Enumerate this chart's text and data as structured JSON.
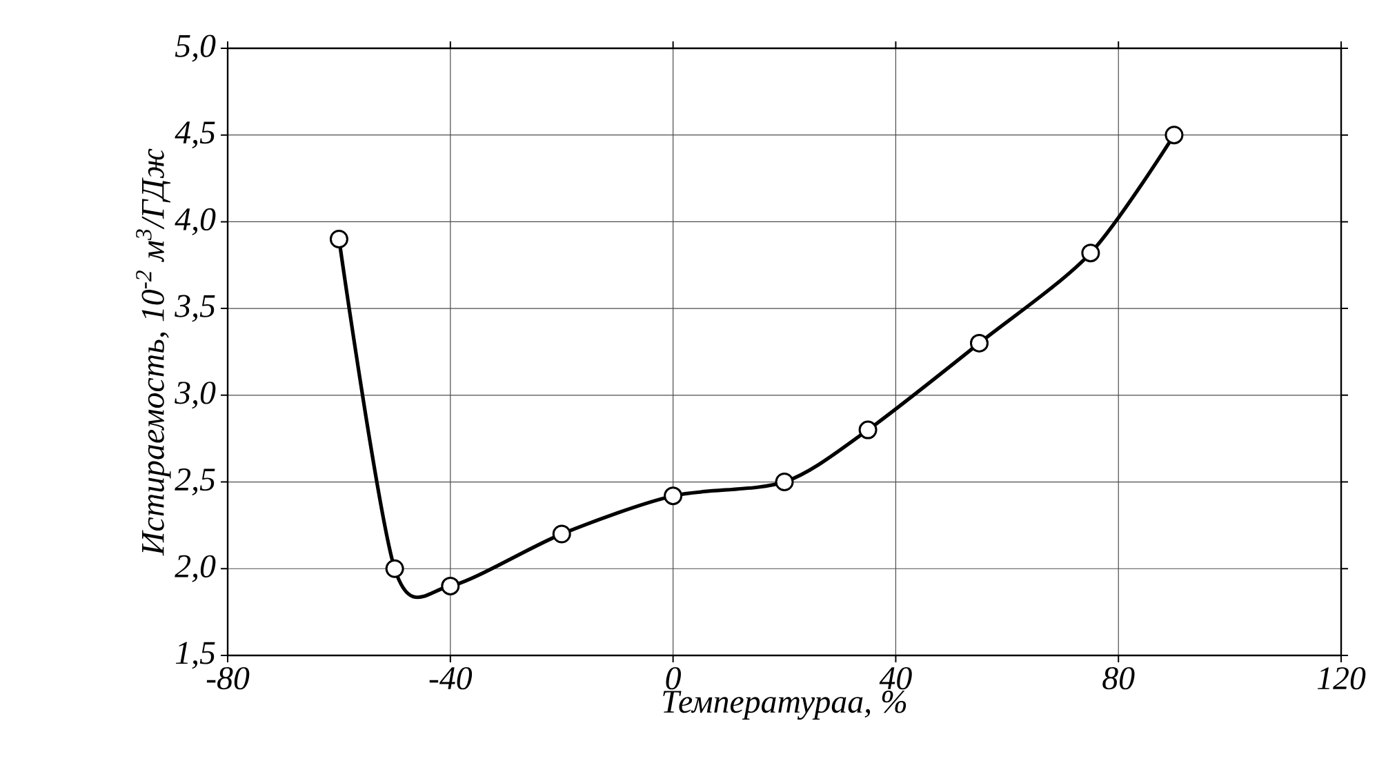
{
  "chart_data": {
    "type": "line",
    "xlabel": "Температураа, %",
    "ylabel": "Истираемость, 10$^{-2}$ м$^{3}$/ГДж",
    "x": [
      -60,
      -50,
      -40,
      -20,
      0,
      20,
      35,
      55,
      75,
      90
    ],
    "series": [
      {
        "color": "#000000",
        "values": [
          3.9,
          2.0,
          1.9,
          2.2,
          2.42,
          2.5,
          2.8,
          3.3,
          3.82,
          4.5
        ]
      }
    ],
    "xlim": [
      -80,
      120
    ],
    "xticks": [
      -80,
      -40,
      0,
      40,
      80,
      120
    ],
    "ylim": [
      1.5,
      5.0
    ],
    "yticks": [
      {
        "value": 1.5,
        "label": "1,5"
      },
      {
        "value": 2.0,
        "label": "2,0"
      },
      {
        "value": 2.5,
        "label": "2,5"
      },
      {
        "value": 3.0,
        "label": "3,0"
      },
      {
        "value": 3.5,
        "label": "3,5"
      },
      {
        "value": 4.0,
        "label": "4,0"
      },
      {
        "value": 4.5,
        "label": "4,5"
      },
      {
        "value": 5.0,
        "label": "5,0"
      }
    ],
    "grid": true,
    "marker": "circle",
    "line_style": "solid"
  }
}
